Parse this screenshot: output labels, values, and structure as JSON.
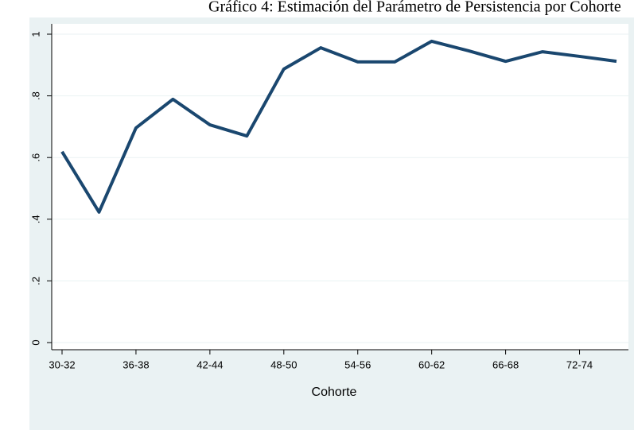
{
  "chart_data": {
    "type": "line",
    "title": "Gráfico 4: Estimación del Parámetro de Persistencia por Cohorte",
    "x_label": "Cohorte",
    "categories": [
      "30-32",
      null,
      "36-38",
      null,
      "42-44",
      null,
      "48-50",
      null,
      "54-56",
      null,
      "60-62",
      null,
      "66-68",
      null,
      "72-74",
      null
    ],
    "series": [
      {
        "color": "#1a476f",
        "values": [
          0.619,
          0.423,
          0.696,
          0.789,
          0.706,
          0.67,
          0.887,
          0.956,
          0.91,
          0.91,
          0.977,
          0.946,
          0.912,
          0.943,
          0.928,
          0.912
        ]
      }
    ],
    "ylim": [
      0,
      1
    ],
    "yticks": [
      0,
      {
        "value": 0.2,
        "label": ".2"
      },
      {
        "value": 0.4,
        "label": ".4"
      },
      {
        "value": 0.6,
        "label": ".6"
      },
      {
        "value": 0.8,
        "label": ".8"
      },
      1
    ],
    "grid": true
  }
}
